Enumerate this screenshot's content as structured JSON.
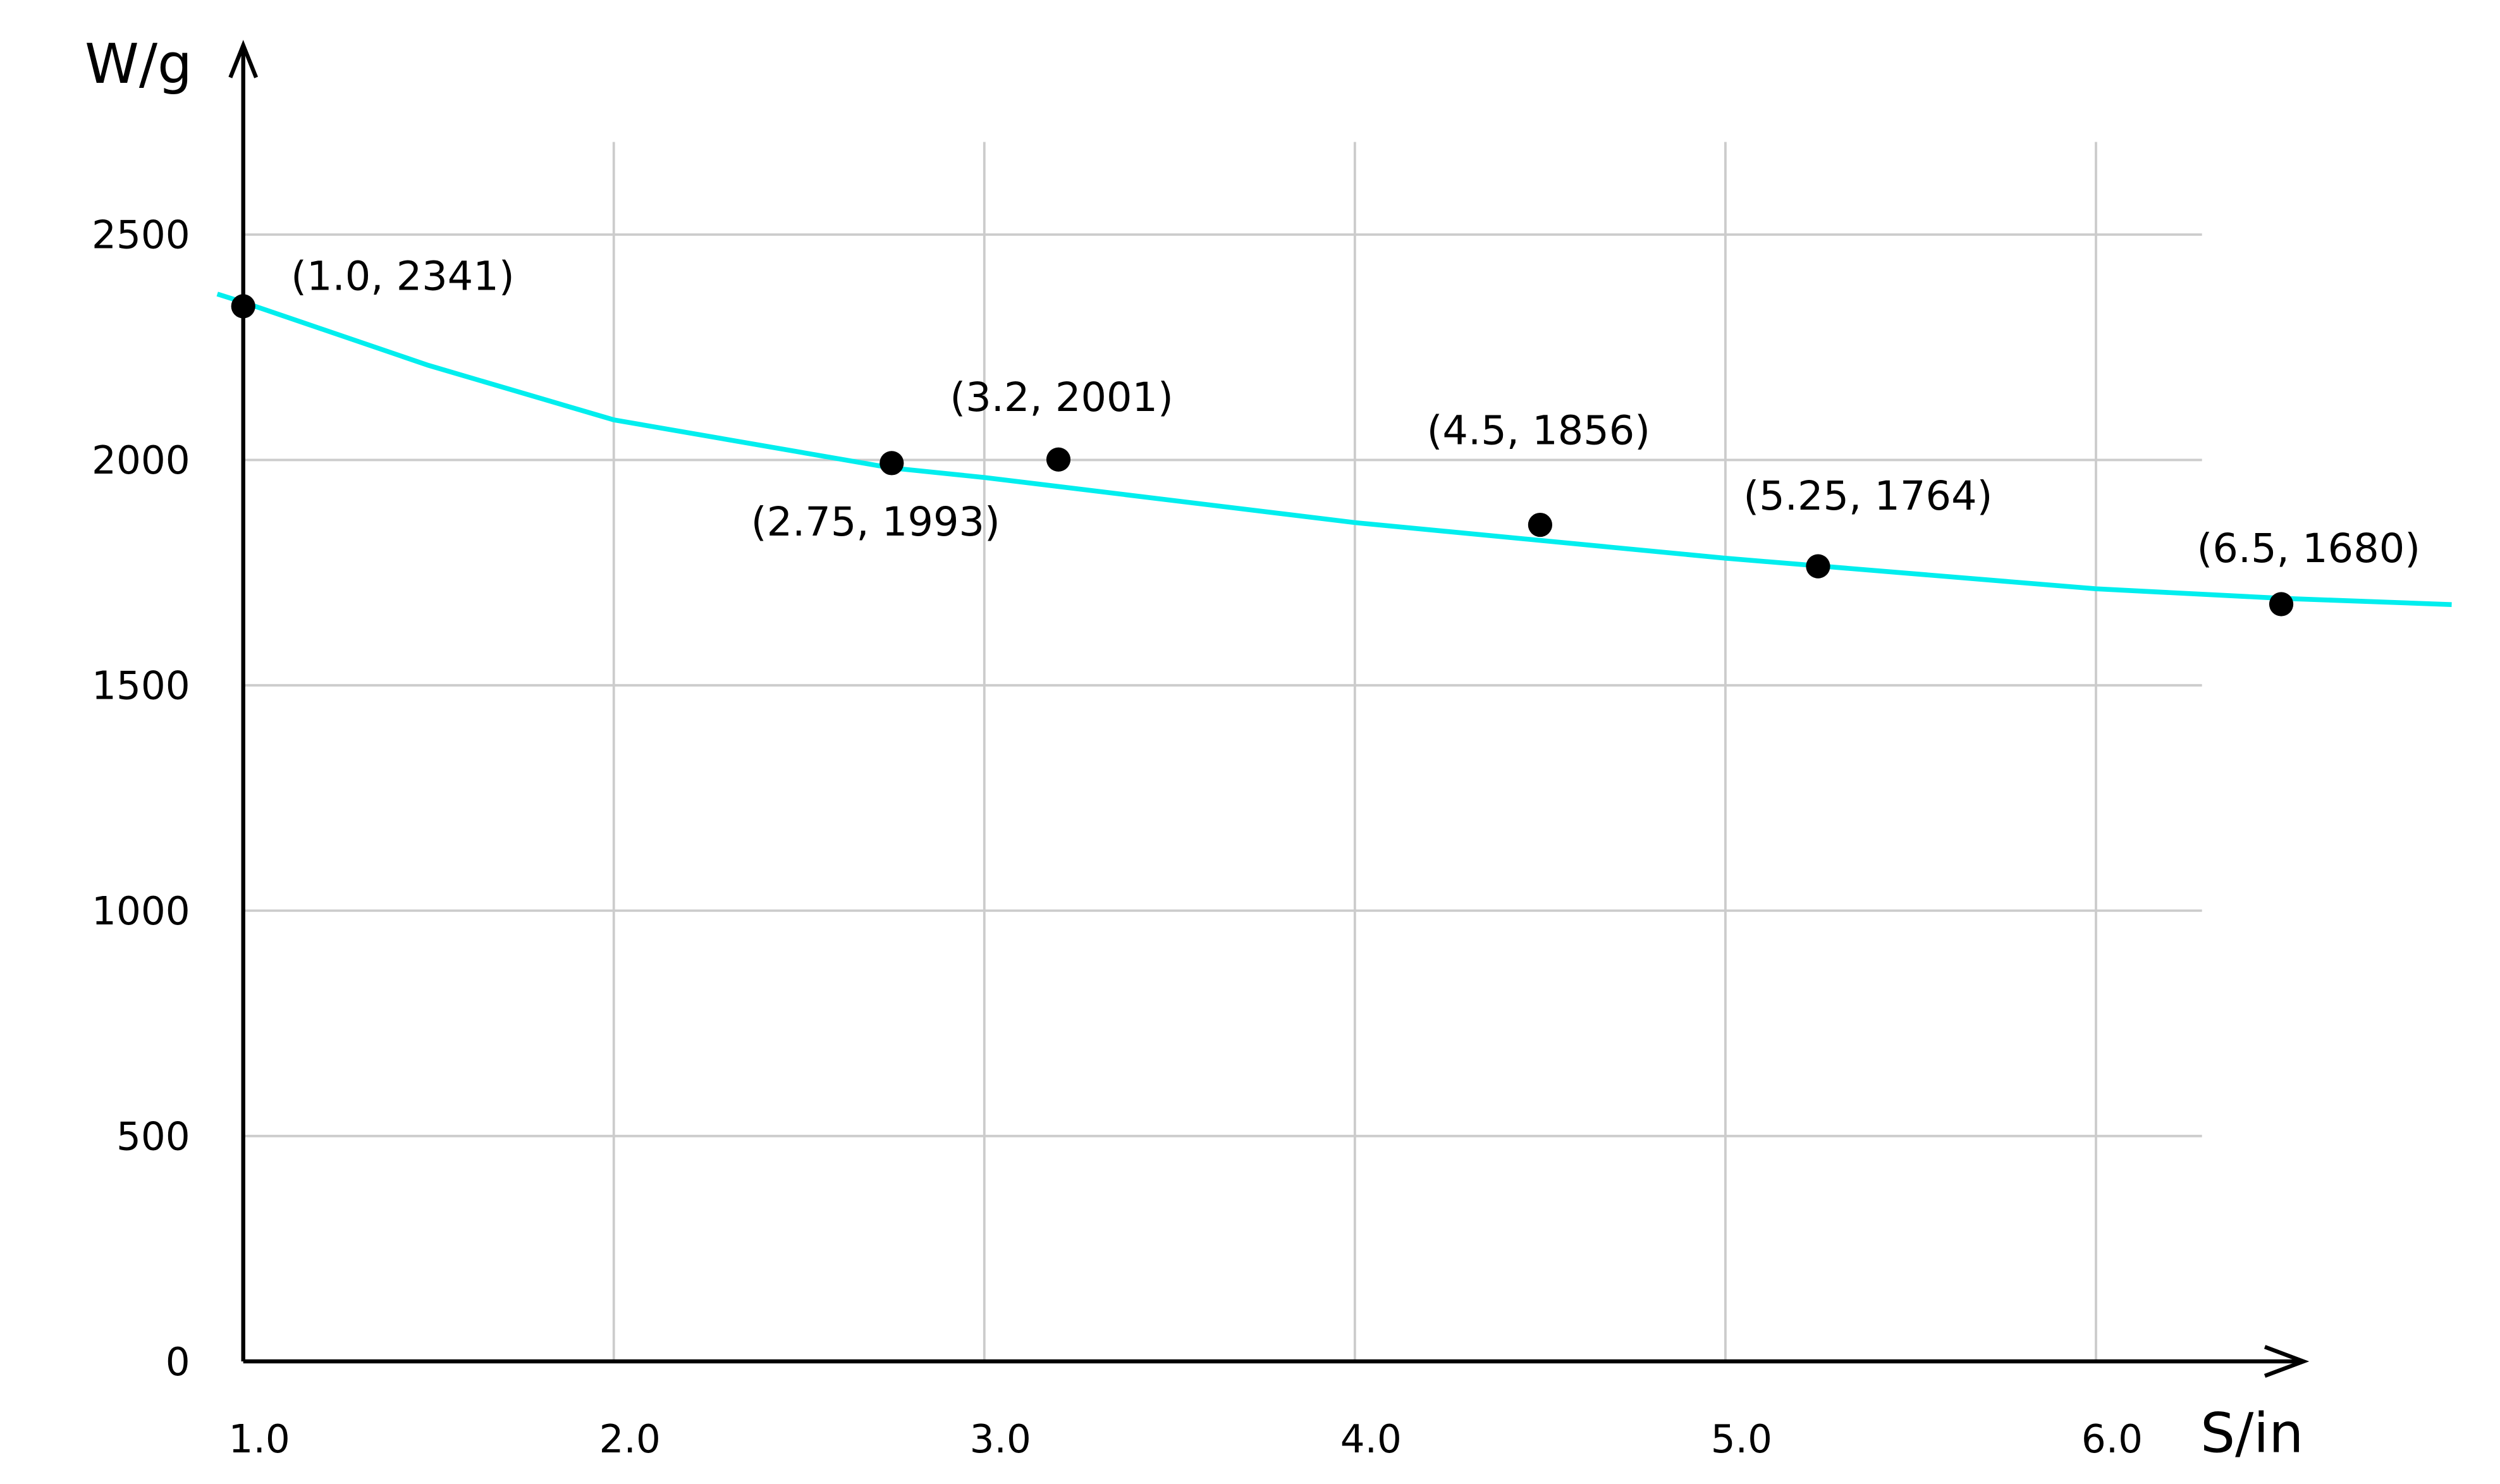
{
  "chart_data": {
    "type": "scatter",
    "x_label": "S/in",
    "y_label": "W/g",
    "xlim": [
      1,
      6.56
    ],
    "ylim": [
      0,
      2920
    ],
    "xticks": [
      {
        "value": 1,
        "label": "1.0"
      },
      {
        "value": 2,
        "label": "2.0"
      },
      {
        "value": 3,
        "label": "3.0"
      },
      {
        "value": 4,
        "label": "4.0"
      },
      {
        "value": 5,
        "label": "5.0"
      },
      {
        "value": 6,
        "label": "6.0"
      }
    ],
    "yticks": [
      0,
      500,
      1000,
      1500,
      2000,
      2500
    ],
    "grid": true,
    "points": {
      "color": "#000000",
      "x": [
        1.0,
        2.75,
        3.2,
        4.5,
        5.25,
        6.5
      ],
      "y": [
        2341,
        1993,
        2001,
        1856,
        1764,
        1680
      ],
      "value_labels": [
        "(1.0, 2341)",
        "(2.75, 1993)",
        "(3.2, 2001)",
        "(4.5, 1856)",
        "(5.25, 1764)",
        "(6.5, 1680)"
      ]
    },
    "curve": {
      "color": "#00eeee",
      "x": [
        0.93,
        1.0,
        1.5,
        2.0,
        2.75,
        3.0,
        4.0,
        5.0,
        6.0,
        6.5,
        6.96
      ],
      "y": [
        2368,
        2350,
        2210,
        2089,
        1982,
        1961,
        1861,
        1782,
        1714,
        1693,
        1679
      ]
    }
  }
}
